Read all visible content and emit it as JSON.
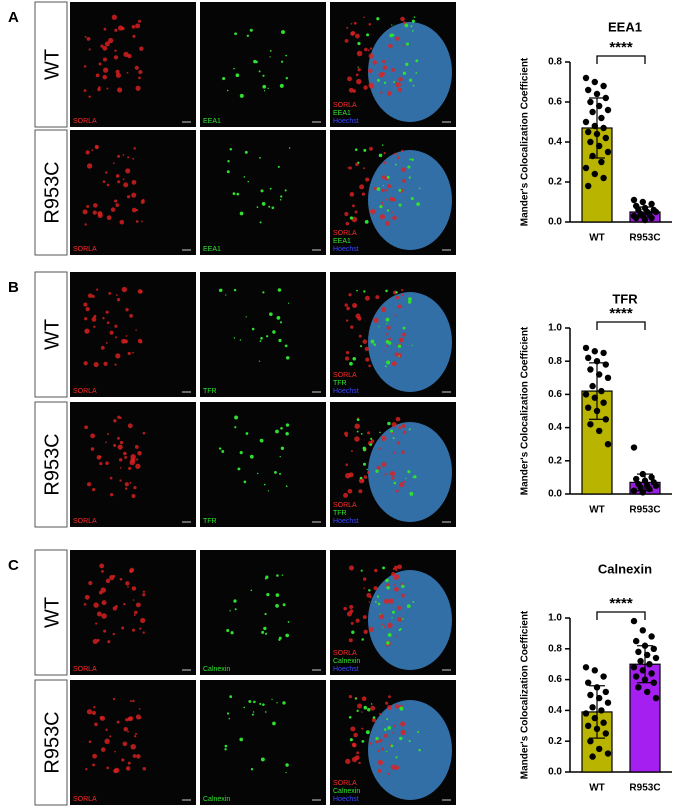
{
  "panels": [
    {
      "label": "A",
      "rows": [
        "WT",
        "R953C"
      ],
      "channels": [
        [
          "SORLA"
        ],
        [
          "EEA1"
        ],
        [
          "SORLA",
          "EEA1",
          "Hoechst"
        ]
      ]
    },
    {
      "label": "B",
      "rows": [
        "WT",
        "R953C"
      ],
      "channels": [
        [
          "SORLA"
        ],
        [
          "TFR"
        ],
        [
          "SORLA",
          "TFR",
          "Hoechst"
        ]
      ]
    },
    {
      "label": "C",
      "rows": [
        "WT",
        "R953C"
      ],
      "channels": [
        [
          "SORLA"
        ],
        [
          "Calnexin"
        ],
        [
          "SORLA",
          "Calnexin",
          "Hoechst"
        ]
      ]
    }
  ],
  "chart_data": [
    {
      "type": "bar",
      "title": "EEA1",
      "ylabel": "Mander's Colocalization Coefficient",
      "significance": "****",
      "categories": [
        "WT",
        "R953C"
      ],
      "values": [
        0.47,
        0.05
      ],
      "errors": [
        0.15,
        0.025
      ],
      "colors": [
        "#b8b400",
        "#9a1ee0"
      ],
      "points": [
        [
          0.72,
          0.7,
          0.68,
          0.66,
          0.64,
          0.62,
          0.6,
          0.58,
          0.56,
          0.55,
          0.52,
          0.5,
          0.48,
          0.47,
          0.45,
          0.44,
          0.42,
          0.4,
          0.38,
          0.35,
          0.33,
          0.3,
          0.27,
          0.24,
          0.22,
          0.18
        ],
        [
          0.11,
          0.1,
          0.09,
          0.08,
          0.07,
          0.06,
          0.06,
          0.05,
          0.05,
          0.04,
          0.04,
          0.03,
          0.03,
          0.02,
          0.02,
          0.01
        ]
      ],
      "ylim": [
        0,
        0.8
      ],
      "yticks": [
        {
          "value": 0,
          "label": "0.0"
        },
        0.2,
        0.4,
        0.6,
        0.8
      ]
    },
    {
      "type": "bar",
      "title": "TFR",
      "ylabel": "Mander's Colocalization Coefficient",
      "significance": "****",
      "categories": [
        "WT",
        "R953C"
      ],
      "values": [
        0.62,
        0.07
      ],
      "errors": [
        0.17,
        0.05
      ],
      "colors": [
        "#b8b400",
        "#9a1ee0"
      ],
      "points": [
        [
          0.88,
          0.86,
          0.85,
          0.82,
          0.8,
          0.78,
          0.75,
          0.72,
          0.7,
          0.65,
          0.62,
          0.6,
          0.58,
          0.55,
          0.52,
          0.5,
          0.45,
          0.42,
          0.38,
          0.3
        ],
        [
          0.28,
          0.12,
          0.1,
          0.09,
          0.08,
          0.07,
          0.06,
          0.05,
          0.05,
          0.04,
          0.03,
          0.02,
          0.01
        ]
      ],
      "ylim": [
        0,
        1
      ],
      "yticks": [
        {
          "value": 0,
          "label": "0.0"
        },
        0.2,
        0.4,
        0.6,
        0.8,
        {
          "value": 1,
          "label": "1.0"
        }
      ]
    },
    {
      "type": "bar",
      "title": "Calnexin",
      "ylabel": "Mander's Colocalization Coefficient",
      "significance": "****",
      "categories": [
        "WT",
        "R953C"
      ],
      "values": [
        0.39,
        0.7
      ],
      "errors": [
        0.17,
        0.12
      ],
      "colors": [
        "#b8b400",
        "#a41ff0"
      ],
      "points": [
        [
          0.68,
          0.66,
          0.62,
          0.58,
          0.55,
          0.52,
          0.5,
          0.48,
          0.45,
          0.42,
          0.4,
          0.38,
          0.35,
          0.32,
          0.3,
          0.28,
          0.25,
          0.2,
          0.15,
          0.12,
          0.1
        ],
        [
          0.98,
          0.92,
          0.88,
          0.85,
          0.82,
          0.8,
          0.78,
          0.76,
          0.74,
          0.72,
          0.7,
          0.68,
          0.66,
          0.64,
          0.62,
          0.6,
          0.58,
          0.55,
          0.52,
          0.48
        ]
      ],
      "ylim": [
        0,
        1
      ],
      "yticks": [
        {
          "value": 0,
          "label": "0.0"
        },
        0.2,
        0.4,
        0.6,
        0.8,
        {
          "value": 1,
          "label": "1.0"
        }
      ]
    }
  ]
}
